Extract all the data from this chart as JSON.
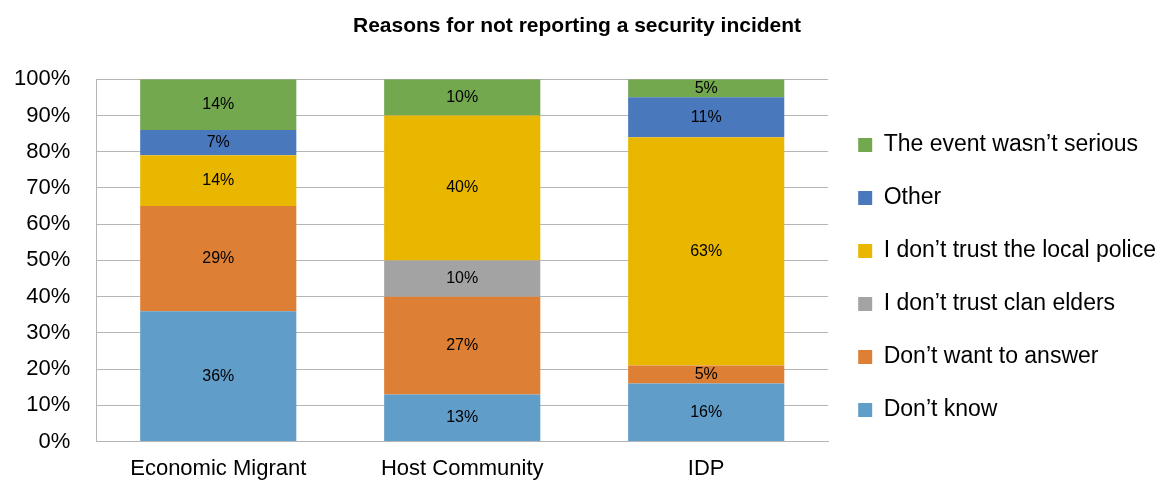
{
  "chart_data": {
    "type": "bar",
    "title": "Reasons for not reporting a security incident",
    "categories": [
      "Economic Migrant",
      "Host Community",
      "IDP"
    ],
    "stacked": true,
    "series": [
      {
        "name": "Don’t know",
        "color": "#609dc9",
        "values": [
          36,
          13,
          16
        ],
        "value_labels": [
          "36%",
          "13%",
          "16%"
        ]
      },
      {
        "name": "Don’t want to answer",
        "color": "#dd8036",
        "values": [
          29,
          27,
          5
        ],
        "value_labels": [
          "29%",
          "27%",
          "5%"
        ]
      },
      {
        "name": "I don’t trust clan elders",
        "color": "#a3a3a3",
        "values": [
          null,
          10,
          null
        ],
        "value_labels": [
          null,
          "10%",
          null
        ]
      },
      {
        "name": "I don’t trust the local police",
        "color": "#e9b700",
        "values": [
          14,
          40,
          63
        ],
        "value_labels": [
          "14%",
          "40%",
          "63%"
        ]
      },
      {
        "name": "Other",
        "color": "#4a78bd",
        "values": [
          7,
          null,
          11
        ],
        "value_labels": [
          "7%",
          null,
          "11%"
        ]
      },
      {
        "name": "The event wasn’t serious",
        "color": "#73a84f",
        "values": [
          14,
          10,
          5
        ],
        "value_labels": [
          "14%",
          "10%",
          "5%"
        ]
      }
    ],
    "ylim": [
      0,
      100
    ],
    "yticks": [
      {
        "value": 0,
        "label": "0%"
      },
      {
        "value": 10,
        "label": "10%"
      },
      {
        "value": 20,
        "label": "20%"
      },
      {
        "value": 30,
        "label": "30%"
      },
      {
        "value": 40,
        "label": "40%"
      },
      {
        "value": 50,
        "label": "50%"
      },
      {
        "value": 60,
        "label": "60%"
      },
      {
        "value": 70,
        "label": "70%"
      },
      {
        "value": 80,
        "label": "80%"
      },
      {
        "value": 90,
        "label": "90%"
      },
      {
        "value": 100,
        "label": "100%"
      }
    ],
    "grid": "y",
    "legend": "right"
  }
}
